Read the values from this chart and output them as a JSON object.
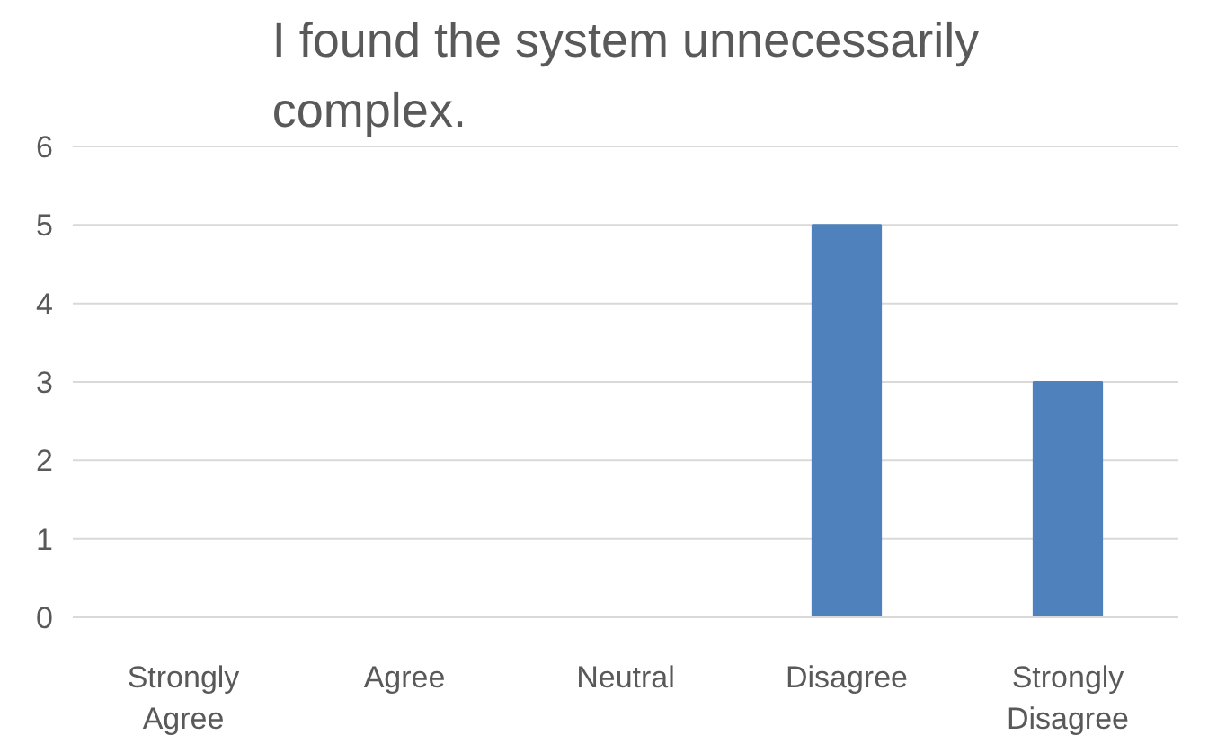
{
  "chart_data": {
    "type": "bar",
    "title": "I found the system unnecessarily complex.",
    "categories": [
      "Strongly Agree",
      "Agree",
      "Neutral",
      "Disagree",
      "Strongly Disagree"
    ],
    "values": [
      0,
      0,
      0,
      5,
      3
    ],
    "color": "#4f81bd",
    "ylim": [
      0,
      6
    ],
    "yticks": [
      0,
      1,
      2,
      3,
      4,
      5,
      6
    ],
    "grid": "y"
  }
}
